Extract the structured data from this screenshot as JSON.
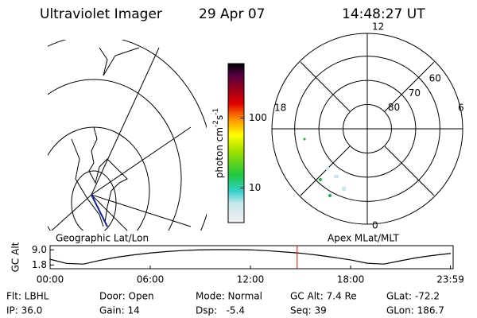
{
  "header": {
    "instrument": "Ultraviolet Imager",
    "date": "29 Apr 07",
    "time": "14:48:27 UT"
  },
  "geo_panel": {
    "label": "Geographic Lat/Lon"
  },
  "colorbar": {
    "label_parts": [
      "photon cm",
      "-2",
      "s",
      "-1"
    ],
    "scale": "log",
    "range": [
      3.2,
      600
    ],
    "ticks": [
      10,
      100
    ]
  },
  "polar_panel": {
    "label": "Apex MLat/MLT",
    "mlt_labels": [
      "12",
      "18",
      "6",
      "0"
    ],
    "lat_circles": [
      80,
      70,
      60
    ],
    "outer_lat": 50.6
  },
  "chart_data": {
    "type": "line",
    "y_label": "GC Alt",
    "color": "#000000",
    "x": [
      0,
      1,
      2,
      3,
      4,
      5,
      6,
      7,
      8,
      9,
      10,
      11,
      12,
      13,
      14,
      15,
      16,
      17,
      18,
      19,
      20,
      21,
      22,
      23,
      24
    ],
    "values": [
      4.5,
      2.5,
      2.2,
      4.0,
      5.5,
      6.6,
      7.5,
      8.2,
      8.7,
      9.0,
      9.1,
      9.1,
      9.0,
      8.6,
      8.0,
      7.4,
      6.5,
      5.4,
      4.2,
      2.6,
      2.2,
      3.8,
      5.3,
      6.4,
      7.3
    ],
    "xlim": [
      0,
      24
    ],
    "ylim": [
      0,
      11
    ],
    "xticks": [
      {
        "value": 0,
        "label": "00:00"
      },
      {
        "value": 6,
        "label": "06:00"
      },
      {
        "value": 12,
        "label": "12:00"
      },
      {
        "value": 18,
        "label": "18:00"
      },
      {
        "value": 23.98,
        "label": "23:59"
      }
    ],
    "yticks": [
      {
        "value": 9,
        "label": "9.0"
      },
      {
        "value": 1.8,
        "label": "1.8"
      }
    ],
    "marker": {
      "x": 14.8,
      "color": "#ff0000"
    }
  },
  "info": [
    [
      "Flt: LBHL",
      "Door: Open",
      "Mode: Normal",
      "GC Alt: 7.4 Re",
      "GLat: -72.2"
    ],
    [
      "IP: 36.0",
      "Gain: 14",
      "Dsp:   -5.4",
      "Seq: 39",
      "GLon: 186.7"
    ]
  ]
}
